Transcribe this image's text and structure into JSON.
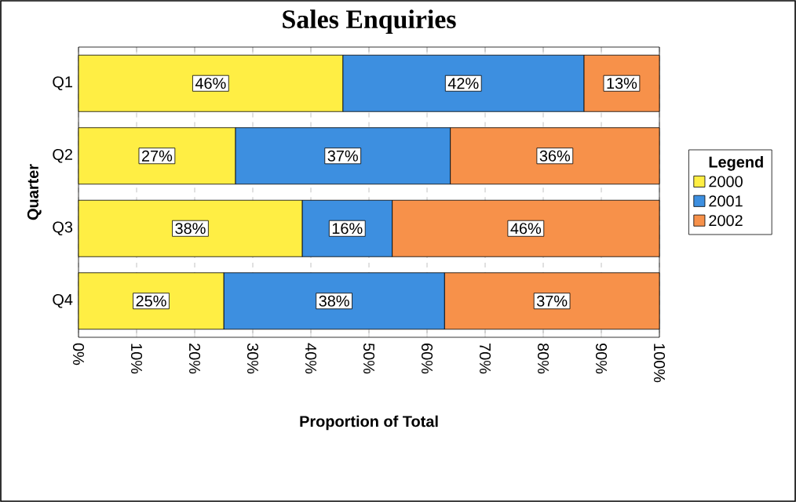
{
  "chart_data": {
    "type": "bar",
    "orientation": "horizontal",
    "stacked": true,
    "title": "Sales Enquiries",
    "xlabel": "Proportion of Total",
    "ylabel": "Quarter",
    "legend_title": "Legend",
    "legend": "right",
    "grid": "x",
    "categories": [
      "Q1",
      "Q2",
      "Q3",
      "Q4"
    ],
    "series": [
      {
        "name": "2000",
        "color": "#ffee44",
        "values": [
          45.5,
          27,
          38.5,
          25
        ],
        "value_labels": [
          "46%",
          "27%",
          "38%",
          "25%"
        ]
      },
      {
        "name": "2001",
        "color": "#3d8fe0",
        "values": [
          41.5,
          37,
          15.5,
          38
        ],
        "value_labels": [
          "42%",
          "37%",
          "16%",
          "38%"
        ]
      },
      {
        "name": "2002",
        "color": "#f7914a",
        "values": [
          13,
          36,
          46,
          37
        ],
        "value_labels": [
          "13%",
          "36%",
          "46%",
          "37%"
        ]
      }
    ],
    "xlim": [
      0,
      100
    ],
    "xticks": [
      {
        "value": 0,
        "label": "0%"
      },
      {
        "value": 10,
        "label": "10%"
      },
      {
        "value": 20,
        "label": "20%"
      },
      {
        "value": 30,
        "label": "30%"
      },
      {
        "value": 40,
        "label": "40%"
      },
      {
        "value": 50,
        "label": "50%"
      },
      {
        "value": 60,
        "label": "60%"
      },
      {
        "value": 70,
        "label": "70%"
      },
      {
        "value": 80,
        "label": "80%"
      },
      {
        "value": 90,
        "label": "90%"
      },
      {
        "value": 100,
        "label": "100%"
      }
    ]
  }
}
